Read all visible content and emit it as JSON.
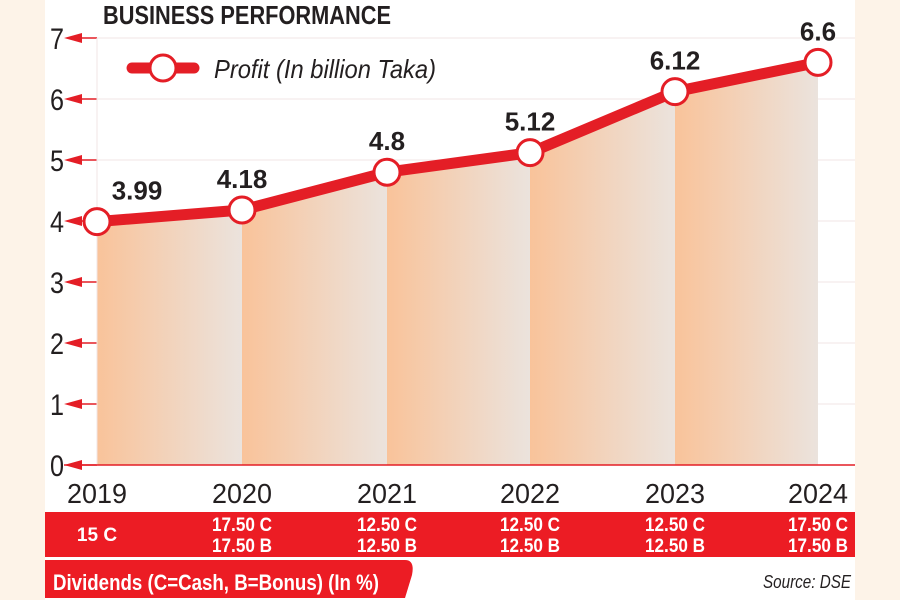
{
  "chart_data": {
    "type": "line",
    "title": "BUSINESS PERFORMANCE",
    "categories": [
      "2019",
      "2020",
      "2021",
      "2022",
      "2023",
      "2024"
    ],
    "series": [
      {
        "name": "Profit (In billion Taka)",
        "values": [
          3.99,
          4.18,
          4.8,
          5.12,
          6.12,
          6.6
        ]
      }
    ],
    "data_labels": [
      "3.99",
      "4.18",
      "4.8",
      "5.12",
      "6.12",
      "6.6"
    ],
    "ylim": [
      0,
      7
    ],
    "yticks": [
      "0",
      "1",
      "2",
      "3",
      "4",
      "5",
      "6",
      "7"
    ],
    "grid": true,
    "legend": "top-left",
    "colors": {
      "line": "#e41e26",
      "band": "#ec1c24",
      "fill_orange": "#f9c7a0",
      "fill_grey": "#e8e2dc",
      "background": "#fdf3e8"
    }
  },
  "dividends": {
    "values": [
      [
        "15 C"
      ],
      [
        "17.50 C",
        "17.50 B"
      ],
      [
        "12.50 C",
        "12.50 B"
      ],
      [
        "12.50 C",
        "12.50 B"
      ],
      [
        "12.50 C",
        "12.50 B"
      ],
      [
        "17.50 C",
        "17.50 B"
      ]
    ],
    "label": "Dividends (C=Cash, B=Bonus) (In %)"
  },
  "source": "Source: DSE"
}
